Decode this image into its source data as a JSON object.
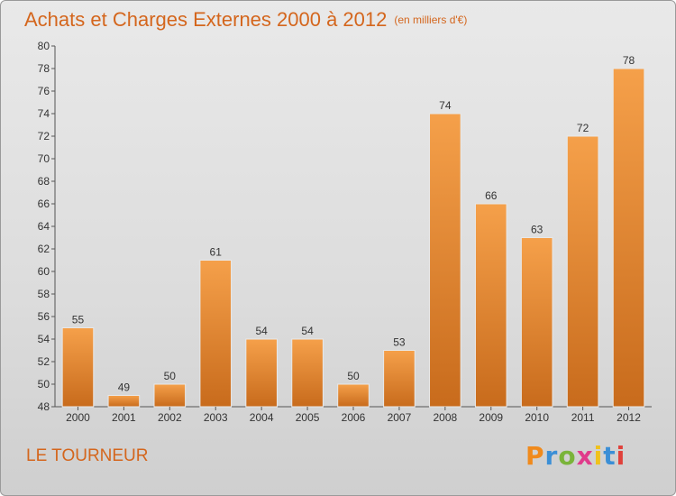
{
  "chart_data": {
    "type": "bar",
    "title": "Achats et Charges Externes 2000 à 2012",
    "unit_label": "(en milliers d'€)",
    "categories": [
      "2000",
      "2001",
      "2002",
      "2003",
      "2004",
      "2005",
      "2006",
      "2007",
      "2008",
      "2009",
      "2010",
      "2011",
      "2012"
    ],
    "values": [
      55,
      49,
      50,
      61,
      54,
      54,
      50,
      53,
      74,
      66,
      63,
      72,
      78
    ],
    "ylim": [
      48,
      80
    ],
    "ytick_step": 2,
    "grid": false,
    "bar_color": "#f5a04a",
    "bar_color_dark": "#c86b1c"
  },
  "footer": {
    "commune": "LE TOURNEUR",
    "logo_text": "Proxiti",
    "logo_colors": [
      "#f08a1c",
      "#3b8fd6",
      "#7ab43a",
      "#e03b8b",
      "#f0c21c",
      "#3b8fd6",
      "#e0413b"
    ]
  }
}
